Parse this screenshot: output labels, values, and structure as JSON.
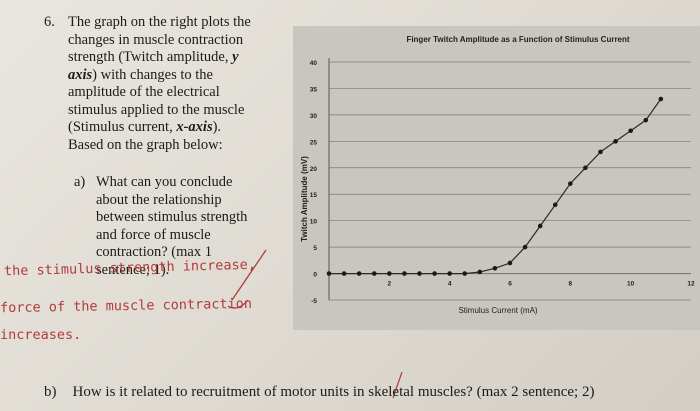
{
  "question": {
    "number": "6.",
    "body_lines": [
      [
        "The graph on the right plots the",
        ""
      ],
      [
        "changes in muscle contraction",
        ""
      ],
      [
        "strength (Twitch amplitude, ",
        "y"
      ],
      [
        "axis",
        ") with changes to the"
      ],
      [
        "amplitude of the electrical",
        ""
      ],
      [
        "stimulus applied to the muscle",
        ""
      ],
      [
        "(Stimulus current, ",
        "x-axis",
        ")."
      ],
      [
        "Based on the graph below:",
        ""
      ]
    ],
    "part_a": {
      "label": "a)",
      "lines": [
        "What can you conclude",
        "about the relationship",
        "between stimulus strength",
        "and force of muscle",
        "contraction? (max 1",
        "sentence; 1)."
      ]
    },
    "part_b": {
      "label": "b)",
      "text": "How is it related to recruitment of motor units in skeletal muscles? (max 2 sentence; 2)"
    }
  },
  "handwritten_answer": {
    "lines": [
      "the stimulus strength increase,",
      "force of the muscle contraction",
      "increases."
    ],
    "color": "#b23b3b"
  },
  "chart_data": {
    "type": "line",
    "title": "Finger Twitch Amplitude as a Function of Stimulus Current",
    "xlabel": "Stimulus Current (mA)",
    "ylabel": "Twitch Amplitude (mV)",
    "xlim": [
      0,
      12
    ],
    "ylim": [
      -5,
      40
    ],
    "x_ticks": [
      2,
      4,
      6,
      8,
      10,
      12
    ],
    "y_ticks": [
      -5,
      0,
      5,
      10,
      15,
      20,
      25,
      30,
      35,
      40
    ],
    "grid": true,
    "x": [
      0,
      0.5,
      1,
      1.5,
      2,
      2.5,
      3,
      3.5,
      4,
      4.5,
      5,
      5.5,
      6,
      6.5,
      7,
      7.5,
      8,
      8.5,
      9,
      9.5,
      10,
      10.5,
      11
    ],
    "values": [
      0,
      0,
      0,
      0,
      0,
      0,
      0,
      0,
      0,
      0,
      0.3,
      1,
      2,
      5,
      9,
      13,
      17,
      20,
      23,
      25,
      27,
      29,
      33
    ],
    "colors": {
      "line": "#2a2a2a",
      "panel": "#c9c6bf",
      "grid": "#7d7a74"
    }
  }
}
